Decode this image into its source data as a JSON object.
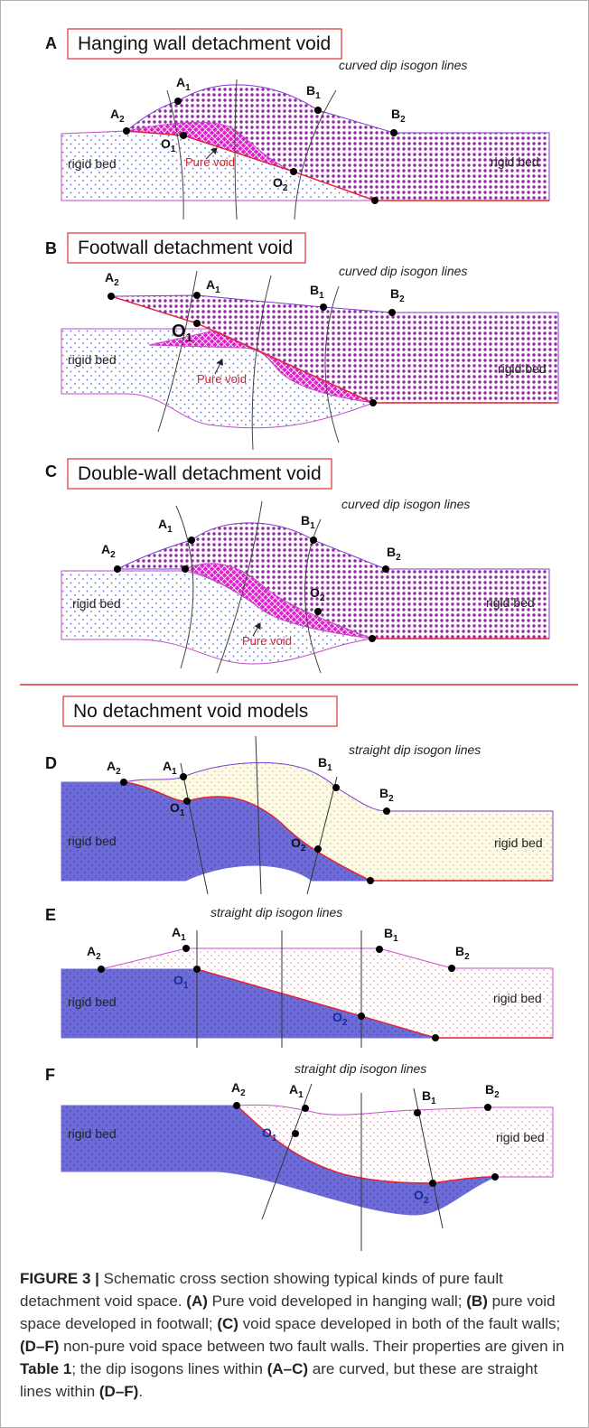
{
  "panels": [
    {
      "letter": "A",
      "title": "Hanging wall detachment void",
      "isogon_label": "curved dip isogon lines",
      "left_label": "rigid bed",
      "right_label": "rigid bed",
      "void_label": "Pure void",
      "points": [
        {
          "name": "A",
          "sub": "2"
        },
        {
          "name": "A",
          "sub": "1"
        },
        {
          "name": "B",
          "sub": "1"
        },
        {
          "name": "B",
          "sub": "2"
        },
        {
          "name": "O",
          "sub": "1"
        },
        {
          "name": "O",
          "sub": "2"
        }
      ]
    },
    {
      "letter": "B",
      "title": "Footwall detachment void",
      "isogon_label": "curved dip isogon lines",
      "left_label": "rigid bed",
      "right_label": "rigid bed",
      "void_label": "Pure void",
      "points": [
        {
          "name": "A",
          "sub": "2"
        },
        {
          "name": "A",
          "sub": "1"
        },
        {
          "name": "B",
          "sub": "1"
        },
        {
          "name": "B",
          "sub": "2"
        },
        {
          "name": "O",
          "sub": "1"
        }
      ]
    },
    {
      "letter": "C",
      "title": "Double-wall detachment void",
      "isogon_label": "curved dip isogon lines",
      "left_label": "rigid bed",
      "right_label": "rigid bed",
      "void_label": "Pure void",
      "points": [
        {
          "name": "A",
          "sub": "2"
        },
        {
          "name": "A",
          "sub": "1"
        },
        {
          "name": "B",
          "sub": "1"
        },
        {
          "name": "B",
          "sub": "2"
        },
        {
          "name": "O",
          "sub": "2"
        }
      ]
    },
    {
      "letter": "D",
      "isogon_label": "straight dip isogon lines",
      "left_label": "rigid bed",
      "right_label": "rigid bed",
      "points": [
        {
          "name": "A",
          "sub": "2"
        },
        {
          "name": "A",
          "sub": "1"
        },
        {
          "name": "B",
          "sub": "1"
        },
        {
          "name": "B",
          "sub": "2"
        },
        {
          "name": "O",
          "sub": "1"
        },
        {
          "name": "O",
          "sub": "2"
        }
      ]
    },
    {
      "letter": "E",
      "isogon_label": "straight dip isogon lines",
      "left_label": "rigid bed",
      "right_label": "rigid bed",
      "points": [
        {
          "name": "A",
          "sub": "2"
        },
        {
          "name": "A",
          "sub": "1"
        },
        {
          "name": "B",
          "sub": "1"
        },
        {
          "name": "B",
          "sub": "2"
        },
        {
          "name": "O",
          "sub": "1"
        },
        {
          "name": "O",
          "sub": "2"
        }
      ]
    },
    {
      "letter": "F",
      "isogon_label": "straight dip isogon lines",
      "left_label": "rigid bed",
      "right_label": "rigid bed",
      "points": [
        {
          "name": "A",
          "sub": "2"
        },
        {
          "name": "A",
          "sub": "1"
        },
        {
          "name": "B",
          "sub": "1"
        },
        {
          "name": "B",
          "sub": "2"
        },
        {
          "name": "O",
          "sub": "1"
        },
        {
          "name": "O",
          "sub": "2"
        }
      ]
    }
  ],
  "section_title": "No detachment void models",
  "caption": [
    {
      "text": "FIGURE 3 |",
      "bold": true
    },
    {
      "text": " Schematic cross section showing typical kinds of pure fault detachment void space. ",
      "bold": false
    },
    {
      "text": "(A)",
      "bold": true
    },
    {
      "text": " Pure void developed in hanging wall; ",
      "bold": false
    },
    {
      "text": "(B)",
      "bold": true
    },
    {
      "text": " pure void space developed in footwall; ",
      "bold": false
    },
    {
      "text": "(C)",
      "bold": true
    },
    {
      "text": " void space developed in both of the fault walls; ",
      "bold": false
    },
    {
      "text": "(D–F)",
      "bold": true
    },
    {
      "text": " non-pure void space between two fault walls. Their properties are given in ",
      "bold": false
    },
    {
      "text": "Table 1",
      "bold": true
    },
    {
      "text": "; the dip isogons lines within ",
      "bold": false
    },
    {
      "text": "(A–C)",
      "bold": true
    },
    {
      "text": " are curved, but these are straight lines within ",
      "bold": false
    },
    {
      "text": "(D–F)",
      "bold": true
    },
    {
      "text": ".",
      "bold": false
    }
  ]
}
